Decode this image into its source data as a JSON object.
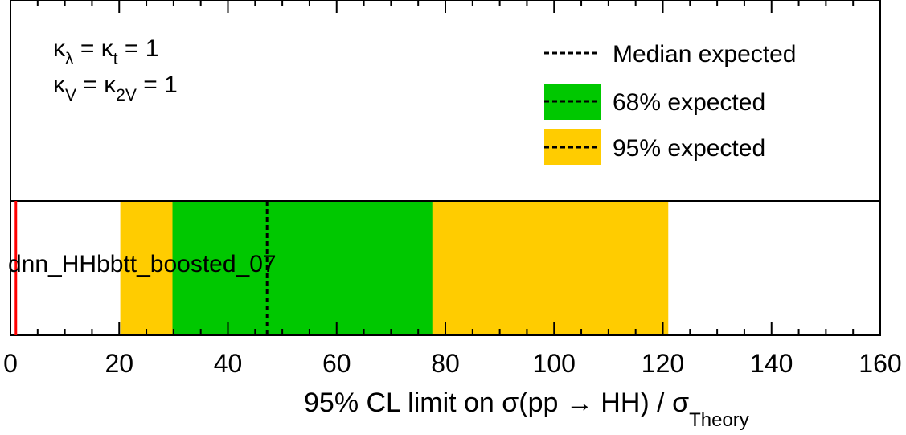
{
  "chart_data": {
    "type": "bar",
    "orientation": "horizontal",
    "categories": [
      "dnn_HHbbtt_boosted_07"
    ],
    "xlim": [
      0,
      160
    ],
    "xticks": [
      "0",
      "20",
      "40",
      "60",
      "80",
      "100",
      "120",
      "140",
      "160"
    ],
    "xlabel": {
      "main": "95% CL limit on σ(pp → HH) / σ",
      "subscript": "Theory"
    },
    "median_expected": 47.2,
    "band_68": [
      29.8,
      77.6
    ],
    "band_95": [
      20.2,
      121.0
    ],
    "theory_line": 1,
    "legend": {
      "placement": "top-right",
      "entries": [
        "Median expected",
        "68% expected",
        "95% expected"
      ]
    },
    "annotations": [
      {
        "base": "κ",
        "sub": "λ",
        "mid": " = κ",
        "sub2": "t",
        "rest": " = 1"
      },
      {
        "base": "κ",
        "sub": "V",
        "mid": " = κ",
        "sub2": "2V",
        "rest": " = 1"
      }
    ],
    "grid": false,
    "colors": {
      "band_68": "#00c800",
      "band_95": "#ffcc00",
      "theory": "#ff0000",
      "median": "#000000"
    }
  }
}
